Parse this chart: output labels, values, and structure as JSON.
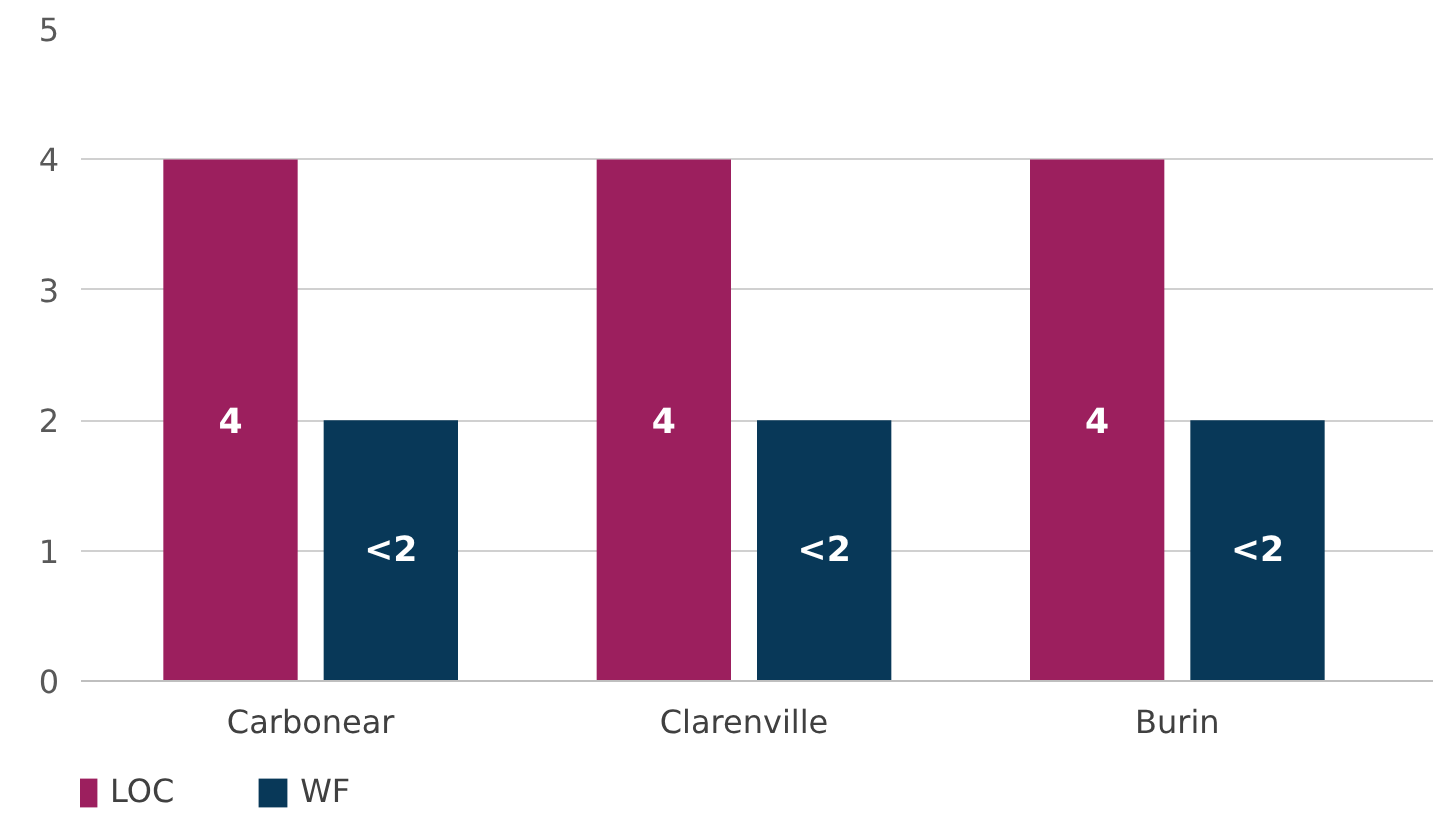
{
  "chart_data": {
    "type": "bar",
    "categories": [
      "Carbonear",
      "Clarenville",
      "Burin"
    ],
    "series": [
      {
        "name": "LOC",
        "color": "#9c1f5e",
        "values": [
          4,
          4,
          4
        ],
        "value_labels": [
          "4",
          "4",
          "4"
        ]
      },
      {
        "name": "WF",
        "color": "#083858",
        "values": [
          2,
          2,
          2
        ],
        "value_labels": [
          "<2",
          "<2",
          "<2"
        ]
      }
    ],
    "ylim": [
      0,
      5
    ],
    "yticks": [
      0,
      1,
      2,
      3,
      4,
      5
    ],
    "grid": "y",
    "legend": "bottom left"
  }
}
